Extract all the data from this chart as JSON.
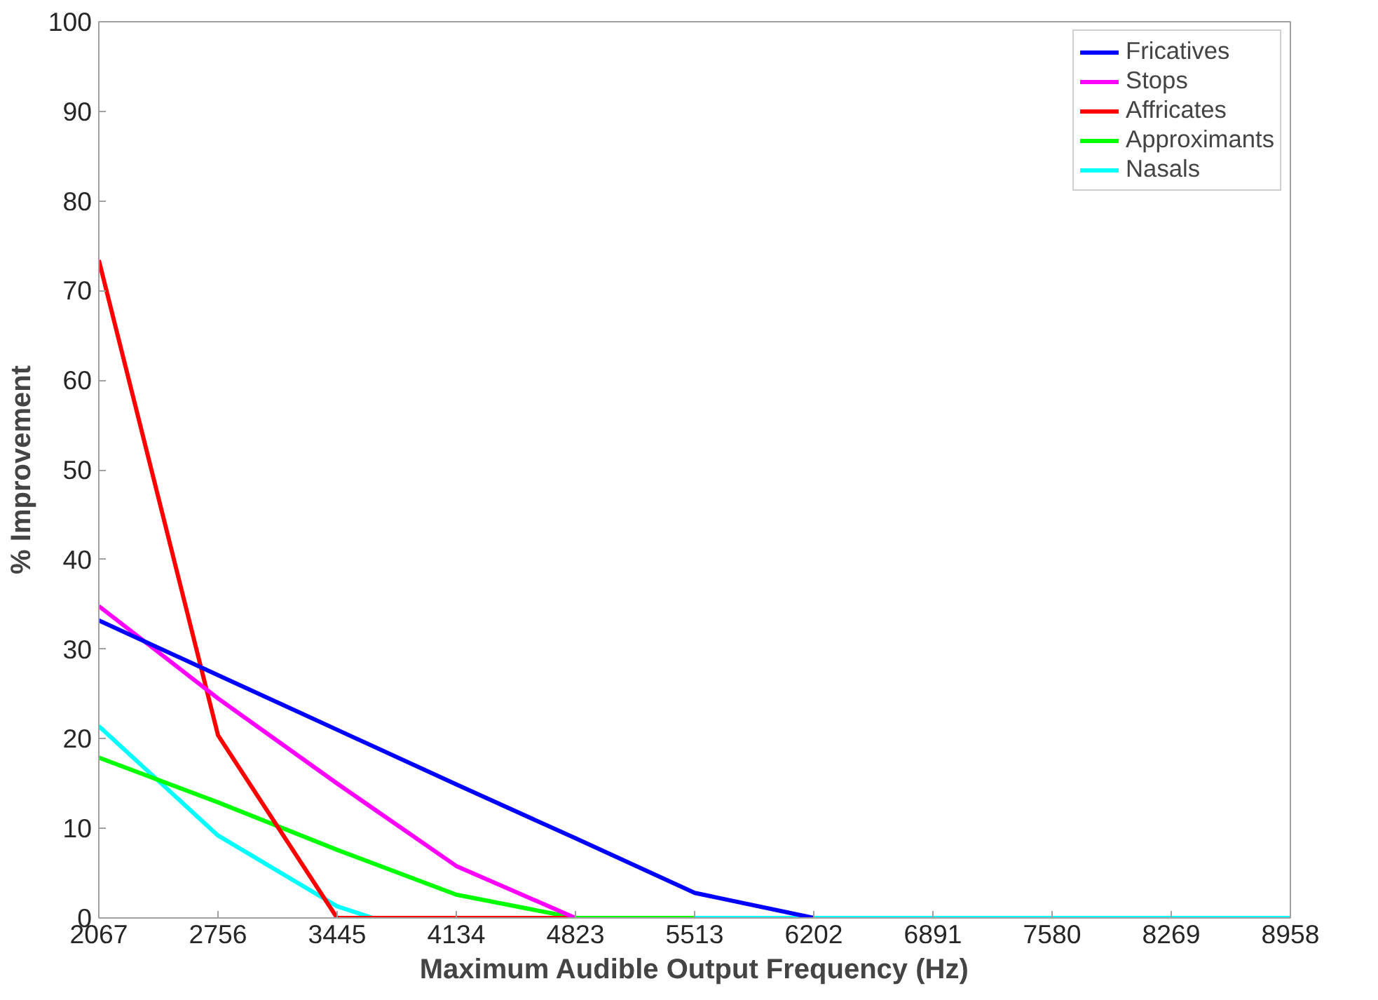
{
  "chart_data": {
    "type": "line",
    "xlabel": "Maximum Audible Output Frequency (Hz)",
    "ylabel": "% Improvement",
    "x": [
      2067,
      2756,
      3445,
      4134,
      4823,
      5513,
      6202
    ],
    "xlim": [
      2067,
      8958
    ],
    "xticks": [
      2067,
      2756,
      3445,
      4134,
      4823,
      5513,
      6202,
      6891,
      7580,
      8269,
      8958
    ],
    "ylim": [
      0,
      100
    ],
    "yticks": [
      0,
      10,
      20,
      30,
      40,
      50,
      60,
      70,
      80,
      90,
      100
    ],
    "grid": false,
    "legend": "top right",
    "marker": "none",
    "line_style": "solid",
    "series": [
      {
        "name": "Fricatives",
        "color": "#0000ff",
        "values": [
          33.2,
          27.1,
          21.0,
          14.9,
          8.9,
          2.8,
          0
        ]
      },
      {
        "name": "Stops",
        "color": "#ff00ff",
        "values": [
          34.8,
          24.5,
          15.0,
          5.8,
          0,
          null,
          null
        ]
      },
      {
        "name": "Affricates",
        "color": "#ff0000",
        "values": [
          73.4,
          20.4,
          0,
          0,
          0,
          null,
          null
        ]
      },
      {
        "name": "Approximants",
        "color": "#00ff00",
        "values": [
          17.9,
          12.9,
          7.6,
          2.6,
          0,
          0,
          null
        ]
      },
      {
        "name": "Nasals",
        "color": "#00ffff",
        "x": [
          2067,
          2756,
          3445,
          3650,
          4823,
          5513,
          6202,
          6891,
          7580,
          8269,
          8958
        ],
        "values": [
          21.4,
          9.2,
          1.3,
          0,
          null,
          0,
          0,
          0,
          0,
          0,
          0
        ]
      }
    ]
  }
}
